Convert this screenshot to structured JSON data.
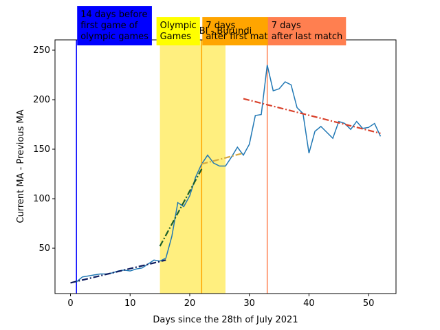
{
  "chart_data": {
    "type": "line",
    "title": "BI - Burundi",
    "xlabel": "Days since the 28th of July 2021",
    "ylabel": "Current MA - Previous MA",
    "xlim": [
      -2.6,
      54.6
    ],
    "xticks": [
      0,
      10,
      20,
      30,
      40,
      50
    ],
    "ylim": [
      4.2,
      260.4
    ],
    "yticks": [
      50,
      100,
      150,
      200,
      250
    ],
    "series": [
      {
        "color": "#1f77b4",
        "x": [
          1,
          2,
          3,
          4,
          5,
          6,
          7,
          8,
          9,
          10,
          11,
          12,
          13,
          14,
          15,
          16,
          17,
          18,
          19,
          20,
          21,
          22,
          23,
          24,
          25,
          26,
          27,
          28,
          29,
          30,
          31,
          32,
          33,
          34,
          35,
          36,
          37,
          38,
          39,
          40,
          41,
          42,
          43,
          44,
          45,
          46,
          47,
          48,
          49,
          50,
          51,
          52
        ],
        "values": [
          16,
          21,
          22,
          23,
          24,
          24,
          25,
          27,
          28,
          27,
          29,
          30,
          34,
          38,
          37,
          40,
          62,
          96,
          92,
          103,
          122,
          135,
          144,
          136,
          133,
          133,
          142,
          152,
          144,
          155,
          184,
          185,
          235,
          209,
          211,
          218,
          215,
          192,
          186,
          146,
          168,
          173,
          167,
          161,
          178,
          176,
          170,
          178,
          171,
          172,
          176,
          163
        ]
      }
    ],
    "trends": [
      {
        "color": "#0d1b5e",
        "x": [
          0,
          16
        ],
        "values": [
          15,
          38
        ]
      },
      {
        "color": "#1a5e2a",
        "x": [
          15,
          22
        ],
        "values": [
          52,
          130
        ]
      },
      {
        "color": "#d4a940",
        "x": [
          22,
          29
        ],
        "values": [
          135,
          146
        ]
      },
      {
        "color": "#d9412b",
        "x": [
          29,
          52
        ],
        "values": [
          201,
          166
        ]
      }
    ],
    "span": {
      "x": [
        15,
        26
      ],
      "color": "#ffef7f"
    },
    "vlines": [
      {
        "x": 1,
        "color": "#0000ff"
      },
      {
        "x": 22,
        "color": "#ffa500"
      },
      {
        "x": 33,
        "color": "#ff7f50"
      }
    ],
    "annotations": [
      {
        "x": 1,
        "color": "#0000ff",
        "text_color": "#ffffff",
        "lines": [
          "14 days before",
          "first game of",
          "olympic games"
        ]
      },
      {
        "x": 15,
        "color": "#ffff00",
        "text_color": "#000000",
        "lines": [
          "Olympic",
          "Games"
        ]
      },
      {
        "x": 22,
        "color": "#ffa500",
        "text_color": "#000000",
        "lines": [
          "7 days",
          "after first match"
        ]
      },
      {
        "x": 33,
        "color": "#ff7f50",
        "text_color": "#000000",
        "lines": [
          "7 days",
          "after last match"
        ]
      }
    ]
  }
}
